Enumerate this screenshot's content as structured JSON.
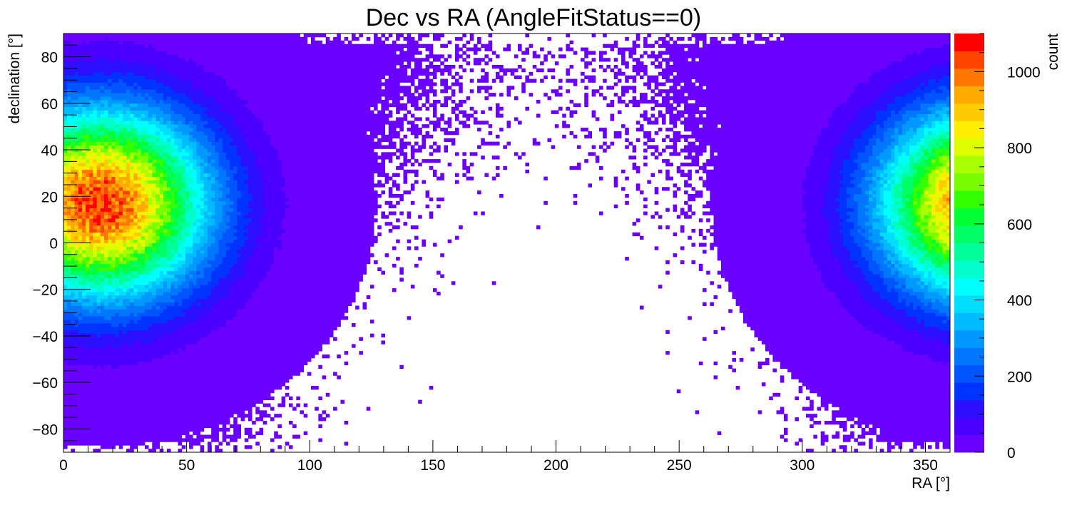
{
  "chart_data": {
    "type": "heatmap",
    "title": "Dec vs RA (AngleFitStatus==0)",
    "xlabel": "RA [°]",
    "ylabel": "declination [°]",
    "xlim": [
      0,
      360
    ],
    "ylim": [
      -90,
      90
    ],
    "x_ticks": [
      0,
      50,
      100,
      150,
      200,
      250,
      300,
      350
    ],
    "y_ticks": [
      -80,
      -60,
      -40,
      -20,
      0,
      20,
      40,
      60,
      80
    ],
    "bin_width_deg": [
      1.5,
      1.5
    ],
    "colorbar": {
      "label": "count",
      "range": [
        0,
        1100
      ],
      "ticks": [
        0,
        200,
        400,
        600,
        800,
        1000
      ],
      "colors": [
        "#6a00ff",
        "#4b00ff",
        "#2a10ff",
        "#0033ff",
        "#0055ff",
        "#0077ff",
        "#0099ff",
        "#00bbff",
        "#00ddff",
        "#00ffff",
        "#00ffcc",
        "#00ff99",
        "#00ff66",
        "#00ff33",
        "#33ff00",
        "#77ff00",
        "#aaff00",
        "#ddff00",
        "#ffee00",
        "#ffcc00",
        "#ffaa00",
        "#ff7700",
        "#ff4400",
        "#ff0000"
      ]
    },
    "density_model": {
      "peak_ra": 15,
      "peak_dec": 17,
      "peak_count": 1050,
      "sigma_ra": 30,
      "sigma_dec": 28,
      "ra_wraps_at": 360
    }
  }
}
